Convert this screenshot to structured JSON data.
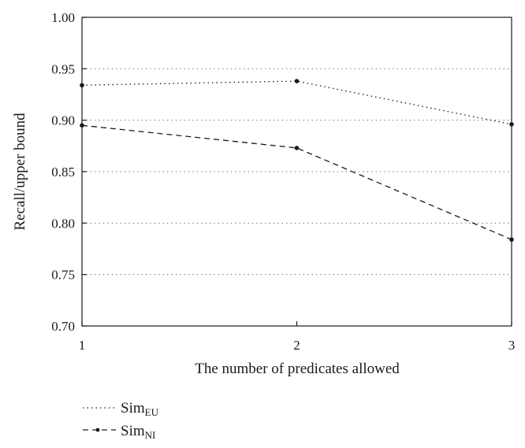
{
  "chart_data": {
    "type": "line",
    "x": [
      1,
      2,
      3
    ],
    "xticks": [
      "1",
      "2",
      "3"
    ],
    "yticks": [
      "0.70",
      "0.75",
      "0.80",
      "0.85",
      "0.90",
      "0.95",
      "1.00"
    ],
    "xlim": [
      1,
      3
    ],
    "ylim": [
      0.7,
      1.0
    ],
    "xlabel": "The number of predicates allowed",
    "ylabel": "Recall/upper bound",
    "grid": "horizontal dotted",
    "legend_position": "bottom-left",
    "series": [
      {
        "name_main": "Sim",
        "name_sub": "EU",
        "style": "dotted",
        "values": [
          0.934,
          0.938,
          0.896
        ]
      },
      {
        "name_main": "Sim",
        "name_sub": "NI",
        "style": "dashed",
        "values": [
          0.895,
          0.873,
          0.784
        ]
      }
    ]
  },
  "colors": {
    "line": "#1a1a1a",
    "grid": "#555555",
    "background": "#ffffff"
  }
}
